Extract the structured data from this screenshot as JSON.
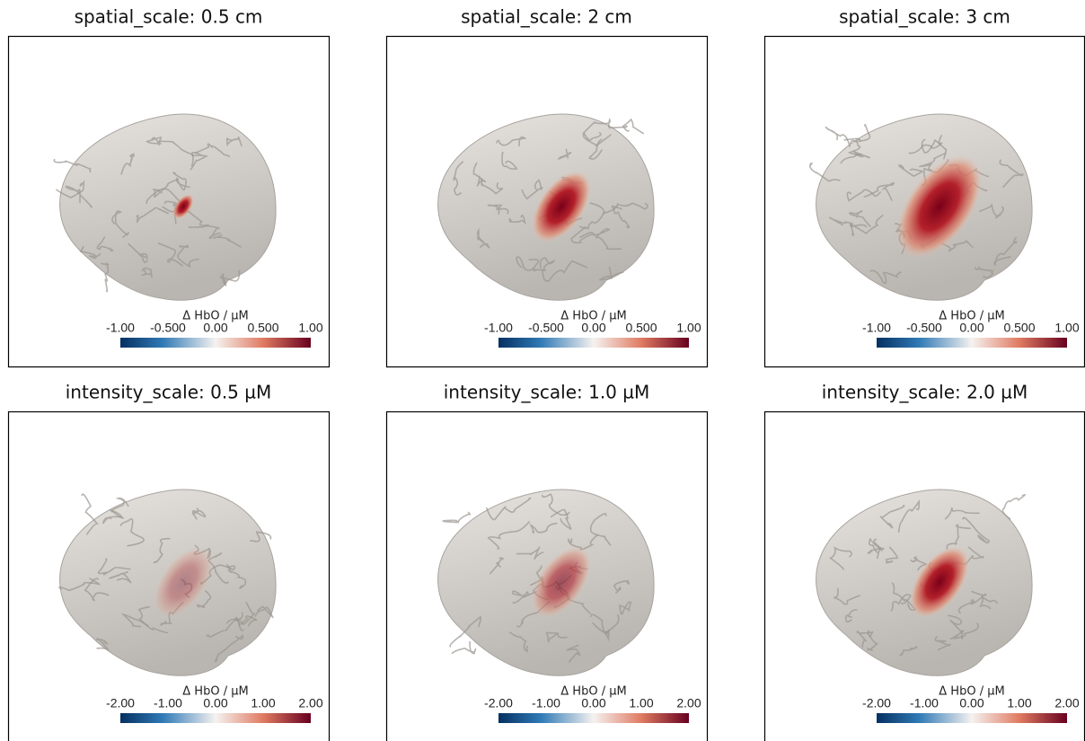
{
  "panels": [
    {
      "title": "spatial_scale: 0.5 cm",
      "colorbar": {
        "label": "Δ HbO / µM",
        "ticks": [
          "-1.00",
          "-0.500",
          "0.00",
          "0.500",
          "1.00"
        ]
      }
    },
    {
      "title": "spatial_scale: 2 cm",
      "colorbar": {
        "label": "Δ HbO / µM",
        "ticks": [
          "-1.00",
          "-0.500",
          "0.00",
          "0.500",
          "1.00"
        ]
      }
    },
    {
      "title": "spatial_scale: 3 cm",
      "colorbar": {
        "label": "Δ HbO / µM",
        "ticks": [
          "-1.00",
          "-0.500",
          "0.00",
          "0.500",
          "1.00"
        ]
      }
    },
    {
      "title": "intensity_scale: 0.5 µM",
      "colorbar": {
        "label": "Δ HbO / µM",
        "ticks": [
          "-2.00",
          "-1.00",
          "0.00",
          "1.00",
          "2.00"
        ]
      }
    },
    {
      "title": "intensity_scale: 1.0 µM",
      "colorbar": {
        "label": "Δ HbO / µM",
        "ticks": [
          "-2.00",
          "-1.00",
          "0.00",
          "1.00",
          "2.00"
        ]
      }
    },
    {
      "title": "intensity_scale: 2.0 µM",
      "colorbar": {
        "label": "Δ HbO / µM",
        "ticks": [
          "-2.00",
          "-1.00",
          "0.00",
          "1.00",
          "2.00"
        ]
      }
    }
  ]
}
